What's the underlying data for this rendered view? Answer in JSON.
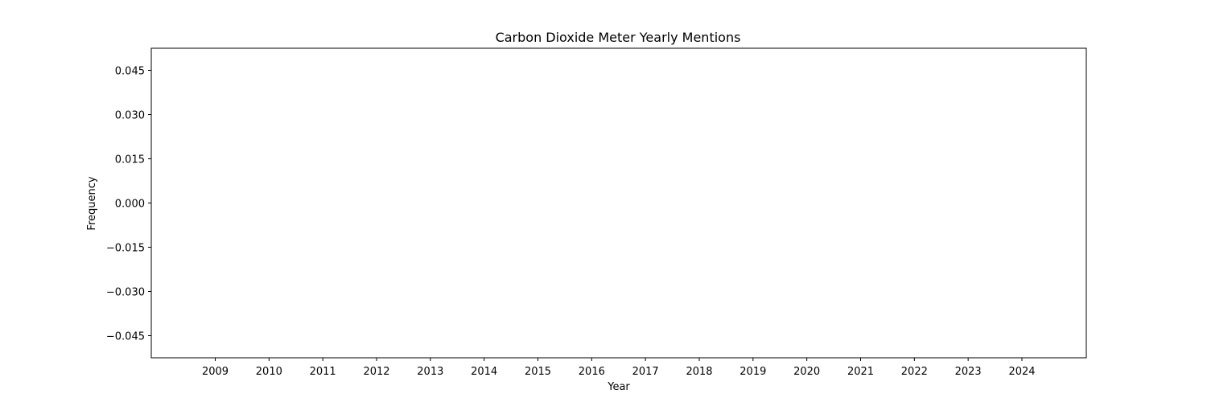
{
  "chart_data": {
    "type": "line",
    "title": "Carbon Dioxide Meter Yearly Mentions",
    "xlabel": "Year",
    "ylabel": "Frequency",
    "categories": [
      "2009",
      "2010",
      "2011",
      "2012",
      "2013",
      "2014",
      "2015",
      "2016",
      "2017",
      "2018",
      "2019",
      "2020",
      "2021",
      "2022",
      "2023",
      "2024"
    ],
    "series": [],
    "ylim": [
      -0.0525,
      0.0525
    ],
    "y_ticks": [
      0.045,
      0.03,
      0.015,
      0.0,
      -0.015,
      -0.03,
      -0.045
    ],
    "y_tick_labels": [
      "0.045",
      "0.030",
      "0.015",
      "0.000",
      "−0.015",
      "−0.030",
      "−0.045"
    ],
    "grid": false,
    "legend": "none"
  }
}
